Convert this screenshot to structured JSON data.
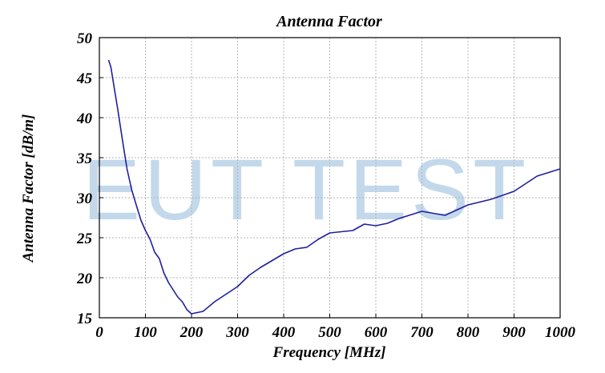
{
  "chart_data": {
    "type": "line",
    "title": "Antenna Factor",
    "xlabel": "Frequency [MHz]",
    "ylabel": "Antenna Factor [dB/m]",
    "xlim": [
      0,
      1000
    ],
    "ylim": [
      15,
      50
    ],
    "xticks": [
      0,
      100,
      200,
      300,
      400,
      500,
      600,
      700,
      800,
      900,
      1000
    ],
    "yticks": [
      15,
      20,
      25,
      30,
      35,
      40,
      45,
      50
    ],
    "grid": true,
    "legend": "none",
    "line_color": "#1f1f9e",
    "series": [
      {
        "x": [
          20,
          25,
          30,
          40,
          50,
          60,
          70,
          80,
          90,
          100,
          110,
          120,
          130,
          140,
          150,
          160,
          170,
          180,
          190,
          200,
          225,
          250,
          300,
          325,
          350,
          400,
          425,
          450,
          475,
          500,
          550,
          575,
          600,
          625,
          650,
          700,
          750,
          800,
          850,
          900,
          950,
          1000
        ],
        "y": [
          47.2,
          46.3,
          44.5,
          41.0,
          37.2,
          33.6,
          31.0,
          29.1,
          27.2,
          25.9,
          24.8,
          23.2,
          22.4,
          20.6,
          19.4,
          18.5,
          17.6,
          17.0,
          16.0,
          15.5,
          15.8,
          17.0,
          18.9,
          20.3,
          21.3,
          23.0,
          23.6,
          23.8,
          24.8,
          25.6,
          25.9,
          26.7,
          26.5,
          26.8,
          27.4,
          28.3,
          27.8,
          29.1,
          29.8,
          30.8,
          32.7,
          33.6
        ]
      }
    ]
  },
  "watermark": "EUT TEST"
}
